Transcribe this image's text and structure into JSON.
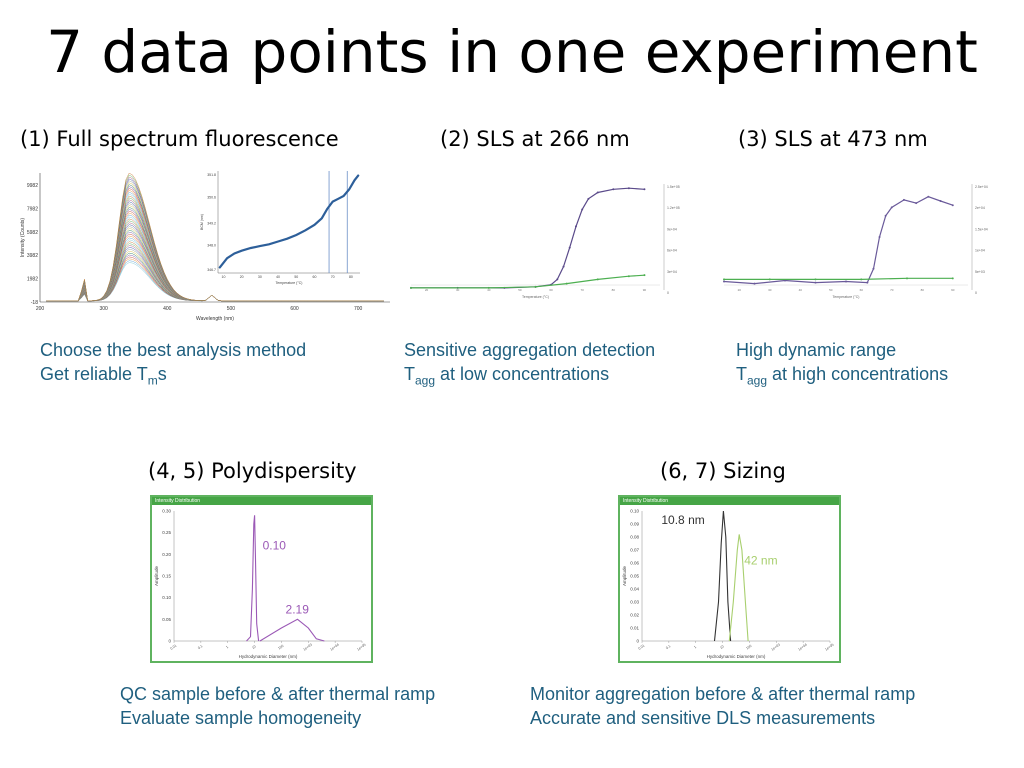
{
  "title": "7 data points in one experiment",
  "panels": {
    "p1": {
      "heading": "(1) Full spectrum fluorescence",
      "line1": "Choose the best analysis method",
      "line2_pre": "Get reliable T",
      "line2_sub": "m",
      "line2_post": "s"
    },
    "p2": {
      "heading": "(2) SLS at 266 nm",
      "line1": "Sensitive aggregation detection",
      "line2_pre": "T",
      "line2_sub": "agg",
      "line2_post": " at low concentrations"
    },
    "p3": {
      "heading": "(3) SLS at 473 nm",
      "line1": "High dynamic range",
      "line2_pre": "T",
      "line2_sub": "agg",
      "line2_post": " at high concentrations"
    },
    "p45": {
      "heading": "(4, 5) Polydispersity",
      "line1": "QC sample before & after thermal ramp",
      "line2": "Evaluate sample homogeneity"
    },
    "p67": {
      "heading": "(6, 7) Sizing",
      "line1": "Monitor aggregation before & after thermal ramp",
      "line2": "Accurate and sensitive DLS measurements"
    }
  },
  "chart_data": [
    {
      "type": "line",
      "name": "full-spectrum-fluorescence",
      "xlabel": "Wavelength (nm)",
      "ylabel": "Intensity (Counts)",
      "x_ticks": [
        "200",
        "300",
        "400",
        "500",
        "600",
        "700"
      ],
      "y_ticks": [
        "9982",
        "7982",
        "5982",
        "3982",
        "1982",
        "-18"
      ],
      "xlim": [
        200,
        750
      ],
      "ylim": [
        -18,
        11000
      ],
      "peak_wavelength": 340,
      "peak_intensity_max": 10900,
      "series_count": 48,
      "colors": [
        "#7fc9d6",
        "#5aa0d6",
        "#e8943a",
        "#c44a3a",
        "#7a5aa8",
        "#2f7f5f",
        "#d6c24a",
        "#9a9a9a",
        "#3a5aa8",
        "#a8587a",
        "#5fb35f",
        "#c87a3a"
      ],
      "inset": {
        "xlabel": "Temperature (°C)",
        "ylabel": "BCM (nm)",
        "x_ticks": [
          "10",
          "20",
          "30",
          "40",
          "50",
          "60",
          "70",
          "80"
        ],
        "y_ticks": [
          "351.8",
          "350.6",
          "349.2",
          "348.0",
          "346.7"
        ],
        "xlim": [
          7,
          85
        ],
        "ylim": [
          346.5,
          352
        ],
        "vlines": [
          68,
          78
        ],
        "line_color": "#2d5f9a",
        "points": [
          [
            8,
            346.8
          ],
          [
            12,
            347.3
          ],
          [
            16,
            347.55
          ],
          [
            20,
            347.7
          ],
          [
            25,
            347.85
          ],
          [
            30,
            347.95
          ],
          [
            35,
            348.05
          ],
          [
            40,
            348.2
          ],
          [
            45,
            348.35
          ],
          [
            50,
            348.55
          ],
          [
            55,
            348.8
          ],
          [
            60,
            349.1
          ],
          [
            64,
            349.45
          ],
          [
            67,
            349.95
          ],
          [
            70,
            350.35
          ],
          [
            73,
            350.5
          ],
          [
            76,
            350.65
          ],
          [
            79,
            351.0
          ],
          [
            82,
            351.5
          ],
          [
            84,
            351.75
          ]
        ]
      }
    },
    {
      "type": "line",
      "name": "sls-266",
      "xlabel": "Temperature (°C)",
      "xlim": [
        15,
        95
      ],
      "ylim": [
        0,
        1
      ],
      "series": [
        {
          "color": "#5a4a8a",
          "points": [
            [
              15,
              0.02
            ],
            [
              30,
              0.02
            ],
            [
              45,
              0.02
            ],
            [
              55,
              0.03
            ],
            [
              60,
              0.05
            ],
            [
              62,
              0.1
            ],
            [
              64,
              0.22
            ],
            [
              66,
              0.4
            ],
            [
              68,
              0.6
            ],
            [
              70,
              0.76
            ],
            [
              72,
              0.86
            ],
            [
              75,
              0.92
            ],
            [
              80,
              0.95
            ],
            [
              85,
              0.96
            ],
            [
              90,
              0.95
            ]
          ]
        },
        {
          "color": "#4caf50",
          "points": [
            [
              15,
              0.02
            ],
            [
              40,
              0.02
            ],
            [
              55,
              0.03
            ],
            [
              65,
              0.06
            ],
            [
              75,
              0.1
            ],
            [
              85,
              0.13
            ],
            [
              90,
              0.14
            ]
          ]
        }
      ]
    },
    {
      "type": "line",
      "name": "sls-473",
      "xlabel": "Temperature (°C)",
      "xlim": [
        15,
        95
      ],
      "ylim": [
        0,
        1
      ],
      "series": [
        {
          "color": "#6a5a9a",
          "points": [
            [
              15,
              0.08
            ],
            [
              25,
              0.06
            ],
            [
              35,
              0.09
            ],
            [
              45,
              0.07
            ],
            [
              55,
              0.08
            ],
            [
              62,
              0.07
            ],
            [
              64,
              0.2
            ],
            [
              66,
              0.5
            ],
            [
              68,
              0.7
            ],
            [
              70,
              0.78
            ],
            [
              74,
              0.85
            ],
            [
              78,
              0.82
            ],
            [
              82,
              0.88
            ],
            [
              86,
              0.84
            ],
            [
              90,
              0.8
            ]
          ]
        },
        {
          "color": "#4caf50",
          "points": [
            [
              15,
              0.1
            ],
            [
              30,
              0.1
            ],
            [
              45,
              0.1
            ],
            [
              60,
              0.1
            ],
            [
              75,
              0.11
            ],
            [
              90,
              0.11
            ]
          ]
        }
      ]
    },
    {
      "type": "line",
      "name": "dls-polydispersity",
      "title": "Intensity Distribution",
      "xlabel": "Hydrodynamic Diameter (nm)",
      "ylabel": "Amplitude",
      "y_ticks": [
        "0.30",
        "0.25",
        "0.20",
        "0.15",
        "0.10",
        "0.05",
        "0"
      ],
      "ylim": [
        0,
        0.3
      ],
      "x_log_decades": [
        -2,
        5
      ],
      "color": "#9b59b6",
      "labels": [
        "0.10",
        "2.19"
      ],
      "series": [
        {
          "name": "0.10",
          "points": [
            [
              0.7,
              0
            ],
            [
              0.85,
              0.01
            ],
            [
              0.92,
              0.12
            ],
            [
              0.97,
              0.27
            ],
            [
              1.0,
              0.29
            ],
            [
              1.03,
              0.2
            ],
            [
              1.08,
              0.04
            ],
            [
              1.15,
              0
            ]
          ]
        },
        {
          "name": "2.19",
          "points": [
            [
              1.2,
              0
            ],
            [
              2.0,
              0.03
            ],
            [
              2.6,
              0.05
            ],
            [
              3.0,
              0.03
            ],
            [
              3.3,
              0.005
            ],
            [
              3.6,
              0
            ]
          ]
        }
      ]
    },
    {
      "type": "line",
      "name": "dls-sizing",
      "title": "Intensity Distribution",
      "xlabel": "Hydrodynamic Diameter (nm)",
      "ylabel": "Amplitude",
      "y_ticks": [
        "0.10",
        "0.09",
        "0.08",
        "0.07",
        "0.06",
        "0.05",
        "0.04",
        "0.03",
        "0.02",
        "0.01",
        "0"
      ],
      "ylim": [
        0,
        0.1
      ],
      "x_log_decades": [
        -2,
        5
      ],
      "series": [
        {
          "name": "10.8 nm",
          "color": "#333333",
          "points": [
            [
              0.7,
              0
            ],
            [
              0.85,
              0.03
            ],
            [
              0.95,
              0.075
            ],
            [
              1.03,
              0.1
            ],
            [
              1.12,
              0.08
            ],
            [
              1.2,
              0.03
            ],
            [
              1.3,
              0
            ]
          ]
        },
        {
          "name": "42 nm",
          "color": "#a8cf6e",
          "points": [
            [
              1.25,
              0
            ],
            [
              1.4,
              0.03
            ],
            [
              1.55,
              0.07
            ],
            [
              1.62,
              0.082
            ],
            [
              1.72,
              0.07
            ],
            [
              1.85,
              0.03
            ],
            [
              1.95,
              0
            ]
          ]
        }
      ]
    }
  ]
}
